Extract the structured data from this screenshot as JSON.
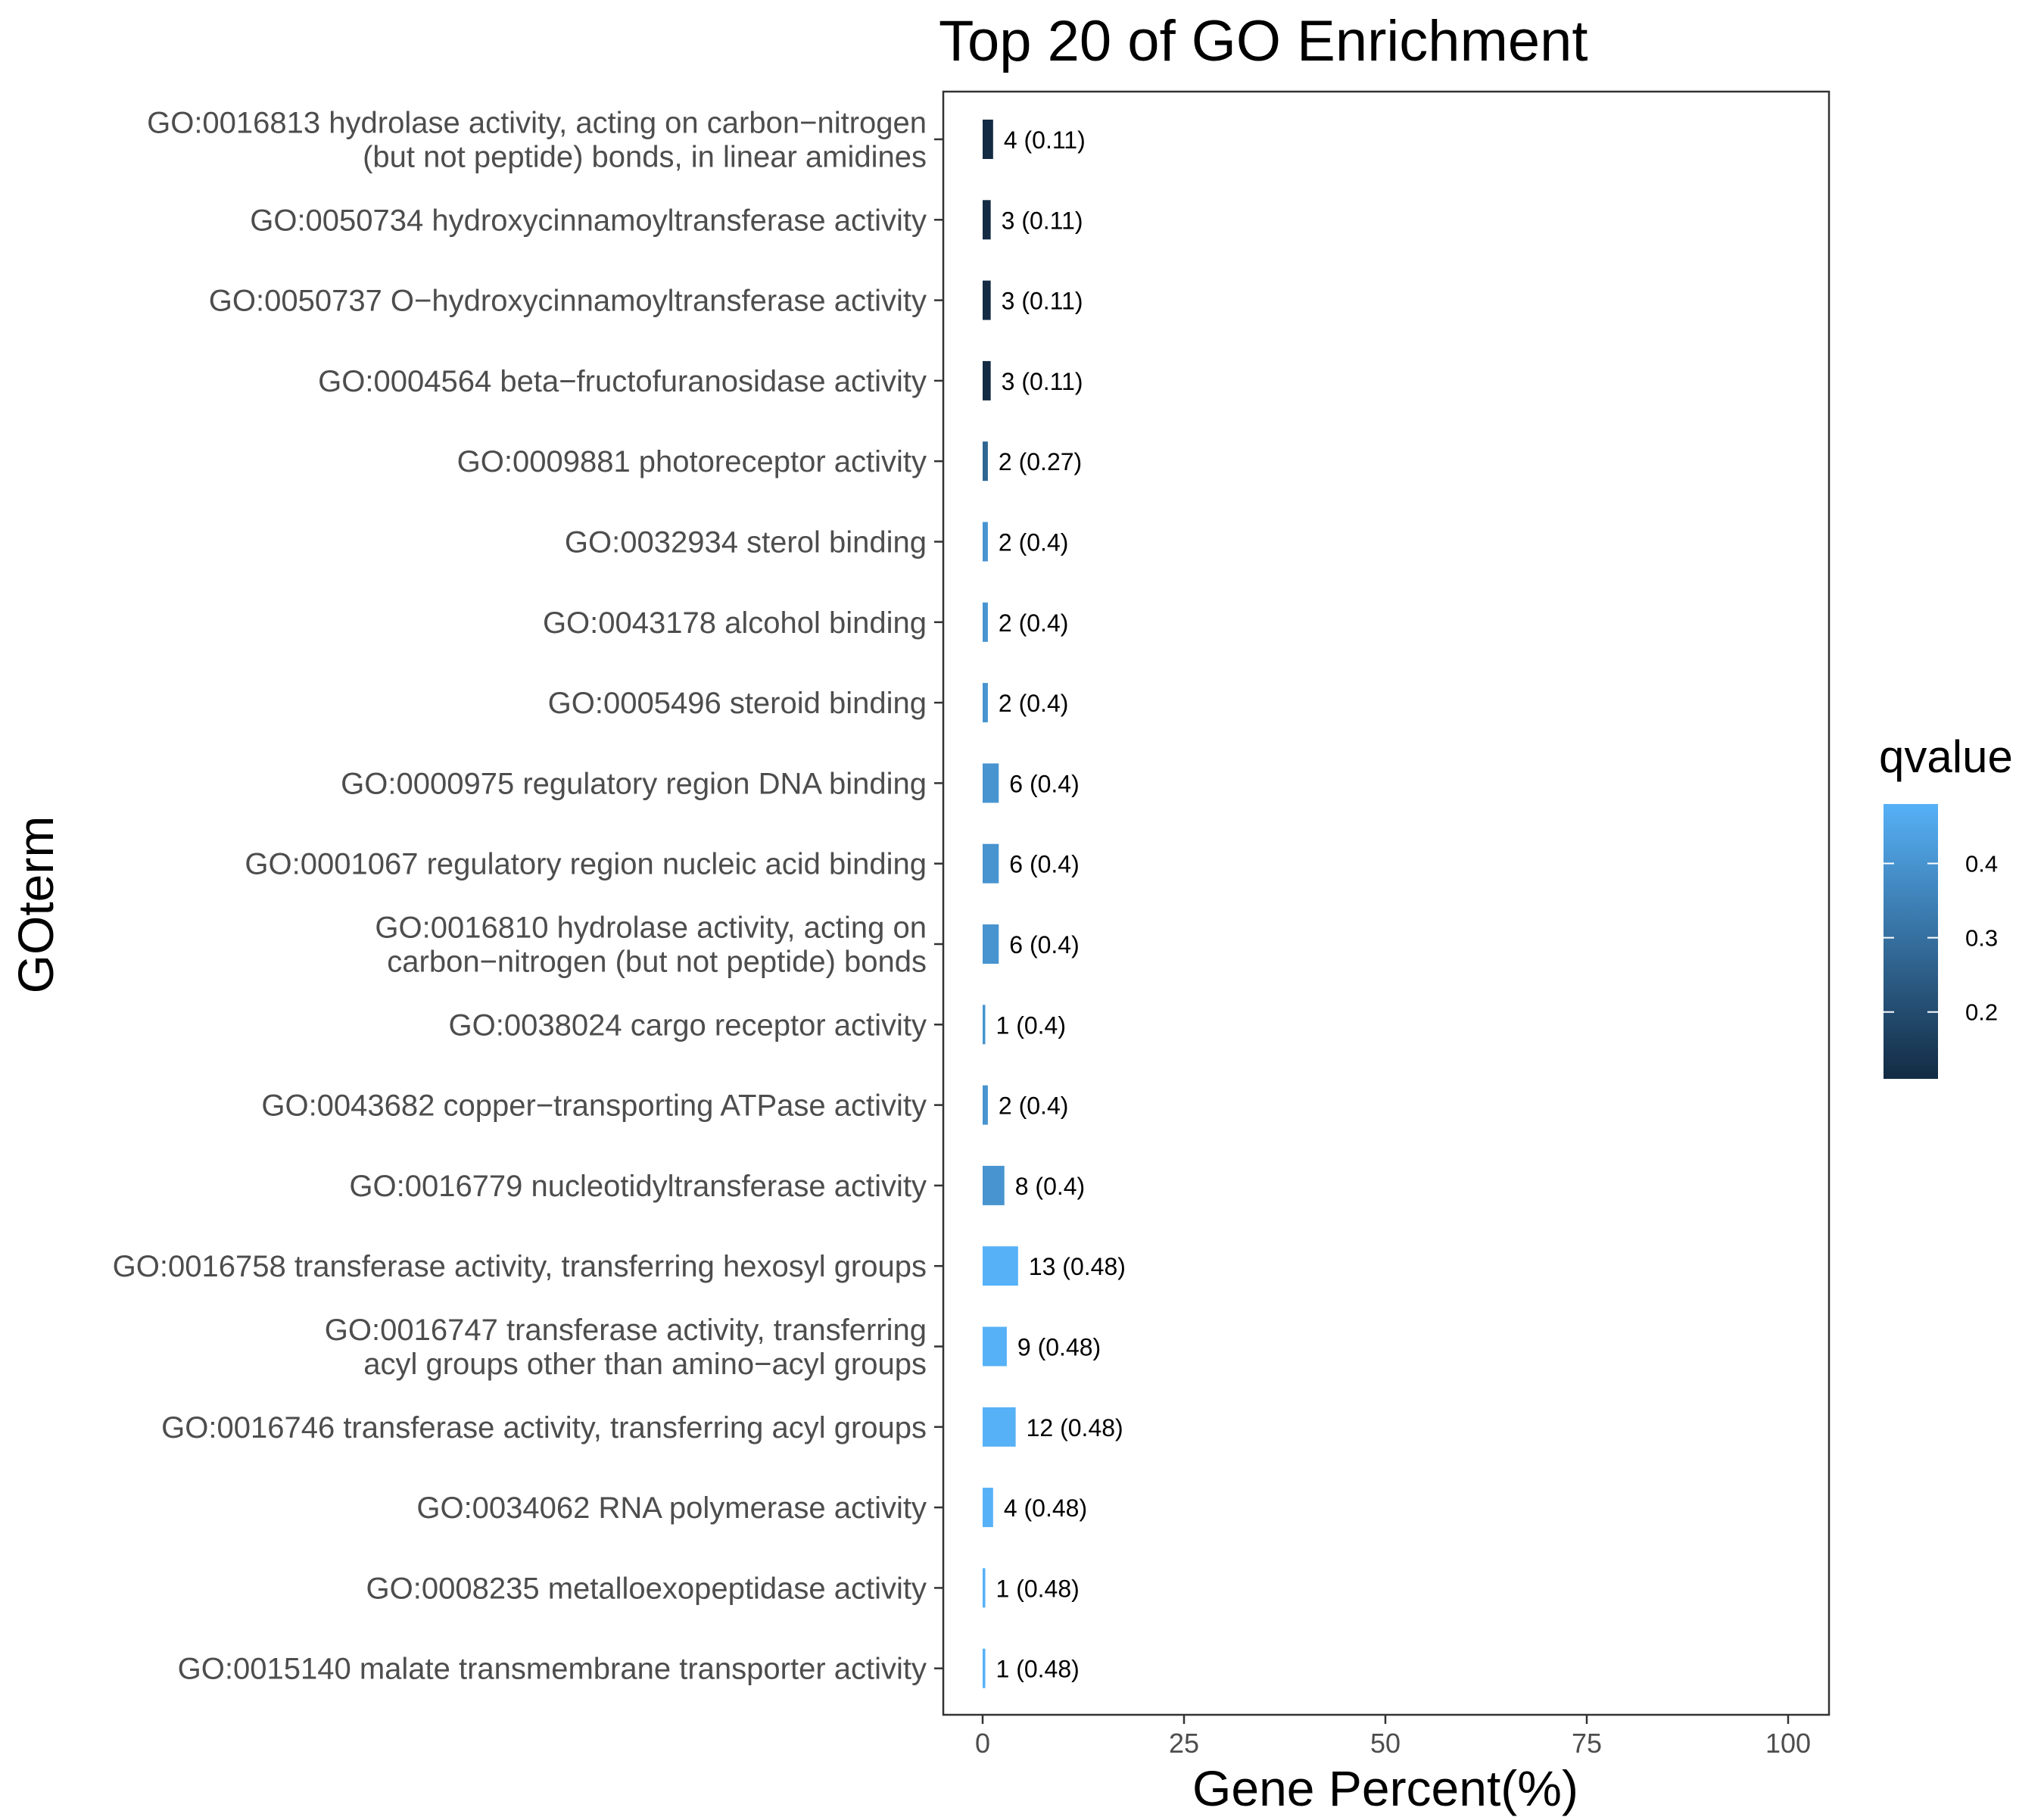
{
  "chart_data": {
    "type": "bar",
    "orientation": "horizontal",
    "title": "Top 20 of GO Enrichment",
    "xlabel": "Gene Percent(%)",
    "ylabel": "GOterm",
    "xlim": [
      0,
      100
    ],
    "xticks": [
      0,
      25,
      50,
      75,
      100
    ],
    "grid": false,
    "legend": {
      "title": "qvalue",
      "position": "right",
      "ticks": [
        0.2,
        0.3,
        0.4
      ],
      "range": [
        0.11,
        0.48
      ],
      "color_low": "#132b43",
      "color_high": "#56b1f7"
    },
    "categories": [
      [
        "GO:0016813 hydrolase activity, acting on carbon−nitrogen",
        "(but not peptide) bonds, in linear amidines"
      ],
      [
        "GO:0050734 hydroxycinnamoyltransferase activity"
      ],
      [
        "GO:0050737 O−hydroxycinnamoyltransferase activity"
      ],
      [
        "GO:0004564 beta−fructofuranosidase activity"
      ],
      [
        "GO:0009881 photoreceptor activity"
      ],
      [
        "GO:0032934 sterol binding"
      ],
      [
        "GO:0043178 alcohol binding"
      ],
      [
        "GO:0005496 steroid binding"
      ],
      [
        "GO:0000975 regulatory region DNA binding"
      ],
      [
        "GO:0001067 regulatory region nucleic acid binding"
      ],
      [
        "GO:0016810 hydrolase activity, acting on",
        "carbon−nitrogen (but not peptide) bonds"
      ],
      [
        "GO:0038024 cargo receptor activity"
      ],
      [
        "GO:0043682 copper−transporting ATPase activity"
      ],
      [
        "GO:0016779 nucleotidyltransferase activity"
      ],
      [
        "GO:0016758 transferase activity, transferring hexosyl groups"
      ],
      [
        "GO:0016747 transferase activity, transferring",
        "acyl groups other than amino−acyl groups"
      ],
      [
        "GO:0016746 transferase activity, transferring acyl groups"
      ],
      [
        "GO:0034062 RNA polymerase activity"
      ],
      [
        "GO:0008235 metalloexopeptidase activity"
      ],
      [
        "GO:0015140 malate transmembrane transporter activity"
      ]
    ],
    "values": [
      1.3,
      1.0,
      1.0,
      1.0,
      0.65,
      0.65,
      0.65,
      0.65,
      2.0,
      2.0,
      2.0,
      0.33,
      0.65,
      2.7,
      4.4,
      3.0,
      4.1,
      1.3,
      0.33,
      0.33
    ],
    "qvalues": [
      0.11,
      0.11,
      0.11,
      0.11,
      0.27,
      0.4,
      0.4,
      0.4,
      0.4,
      0.4,
      0.4,
      0.4,
      0.4,
      0.4,
      0.48,
      0.48,
      0.48,
      0.48,
      0.48,
      0.48
    ],
    "bar_labels": [
      "4 (0.11)",
      "3 (0.11)",
      "3 (0.11)",
      "3 (0.11)",
      "2 (0.27)",
      "2 (0.4)",
      "2 (0.4)",
      "2 (0.4)",
      "6 (0.4)",
      "6 (0.4)",
      "6 (0.4)",
      "1 (0.4)",
      "2 (0.4)",
      "8 (0.4)",
      "13 (0.48)",
      "9 (0.48)",
      "12 (0.48)",
      "4 (0.48)",
      "1 (0.48)",
      "1 (0.48)"
    ]
  }
}
